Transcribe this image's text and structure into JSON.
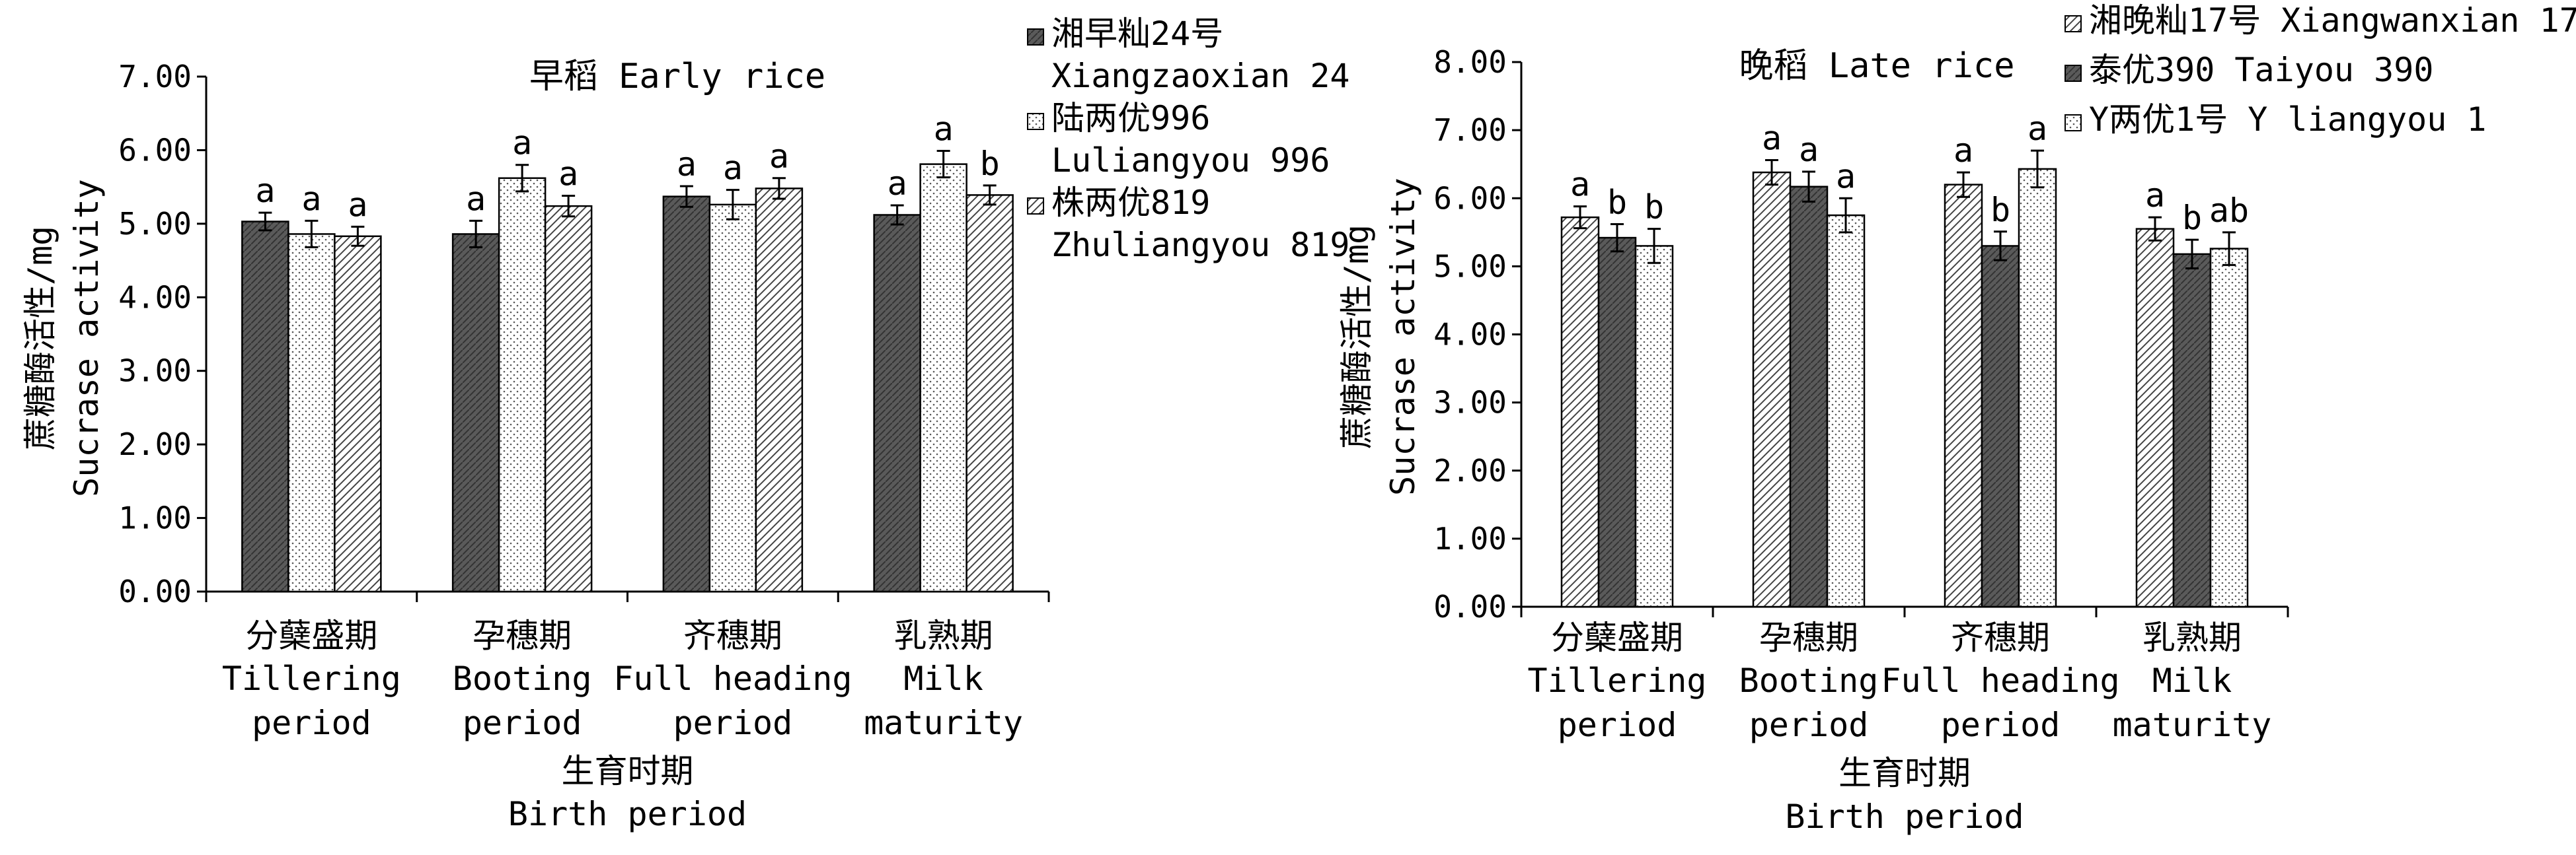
{
  "chart_data": [
    {
      "type": "bar",
      "title": "早稻 Early rice",
      "xlabel_cn": "生育时期",
      "xlabel_en": "Birth period",
      "ylabel_cn": "蔗糖酶活性/mg",
      "ylabel_en": "Sucrase activity",
      "ylim": [
        0,
        7
      ],
      "yticks": [
        "0.00",
        "1.00",
        "2.00",
        "3.00",
        "4.00",
        "5.00",
        "6.00",
        "7.00"
      ],
      "categories": [
        {
          "cn": "分蘖盛期",
          "en1": "Tillering",
          "en2": "period"
        },
        {
          "cn": "孕穗期",
          "en1": "Booting",
          "en2": "period"
        },
        {
          "cn": "齐穗期",
          "en1": "Full heading",
          "en2": "period"
        },
        {
          "cn": "乳熟期",
          "en1": "Milk",
          "en2": "maturity"
        }
      ],
      "legend_placement": "right",
      "series": [
        {
          "name_cn": "湘早籼24号",
          "name_en": "Xiangzaoxian 24",
          "pattern": "dark",
          "values": [
            5.03,
            4.86,
            5.37,
            5.12
          ],
          "errors": [
            0.12,
            0.18,
            0.14,
            0.13
          ],
          "letters": [
            "a",
            "a",
            "a",
            "a"
          ]
        },
        {
          "name_cn": "陆两优996",
          "name_en": "Luliangyou 996",
          "pattern": "dots",
          "values": [
            4.86,
            5.62,
            5.26,
            5.81
          ],
          "errors": [
            0.18,
            0.18,
            0.2,
            0.18
          ],
          "letters": [
            "a",
            "a",
            "a",
            "a"
          ]
        },
        {
          "name_cn": "株两优819",
          "name_en": "Zhuliangyou 819",
          "pattern": "hatch",
          "values": [
            4.83,
            5.24,
            5.48,
            5.39
          ],
          "errors": [
            0.13,
            0.14,
            0.14,
            0.13
          ],
          "letters": [
            "a",
            "a",
            "a",
            "b"
          ]
        }
      ]
    },
    {
      "type": "bar",
      "title": "晚稻 Late rice",
      "xlabel_cn": "生育时期",
      "xlabel_en": "Birth period",
      "ylabel_cn": "蔗糖酶活性/mg",
      "ylabel_en": "Sucrase activity",
      "ylim": [
        0,
        8
      ],
      "yticks": [
        "0.00",
        "1.00",
        "2.00",
        "3.00",
        "4.00",
        "5.00",
        "6.00",
        "7.00",
        "8.00"
      ],
      "categories": [
        {
          "cn": "分蘖盛期",
          "en1": "Tillering",
          "en2": "period"
        },
        {
          "cn": "孕穗期",
          "en1": "Booting",
          "en2": "period"
        },
        {
          "cn": "齐穗期",
          "en1": "Full heading",
          "en2": "period"
        },
        {
          "cn": "乳熟期",
          "en1": "Milk",
          "en2": "maturity"
        }
      ],
      "legend_placement": "top-right",
      "series": [
        {
          "name_cn": "湘晚籼17号",
          "name_en": "Xiangwanxian 17",
          "pattern": "hatch",
          "values": [
            5.72,
            6.38,
            6.2,
            5.55
          ],
          "errors": [
            0.16,
            0.18,
            0.18,
            0.17
          ],
          "letters": [
            "a",
            "a",
            "a",
            "a"
          ]
        },
        {
          "name_cn": "泰优390",
          "name_en": "Taiyou 390",
          "pattern": "dark",
          "values": [
            5.42,
            6.17,
            5.3,
            5.18
          ],
          "errors": [
            0.2,
            0.22,
            0.21,
            0.21
          ],
          "letters": [
            "b",
            "a",
            "b",
            "b"
          ]
        },
        {
          "name_cn": "Y两优1号",
          "name_en": "Y liangyou 1",
          "pattern": "dots",
          "values": [
            5.3,
            5.75,
            6.43,
            5.26
          ],
          "errors": [
            0.25,
            0.25,
            0.27,
            0.24
          ],
          "letters": [
            "b",
            "a",
            "a",
            "ab"
          ]
        }
      ]
    }
  ]
}
